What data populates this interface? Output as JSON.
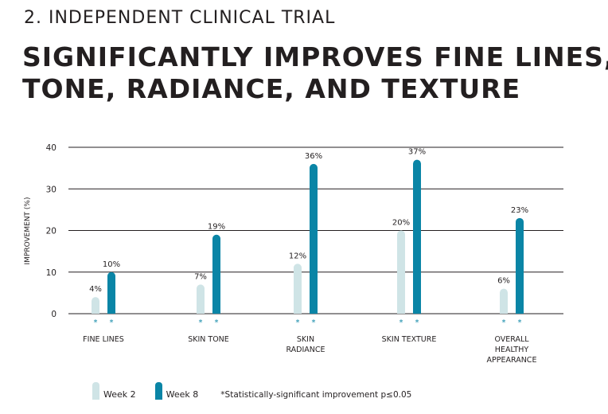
{
  "header": {
    "subtitle": "2. INDEPENDENT CLINICAL TRIAL",
    "title_line1": "SIGNIFICANTLY IMPROVES FINE LINES,",
    "title_line2": "TONE, RADIANCE, AND TEXTURE"
  },
  "legend": {
    "week2": "Week 2",
    "week8": "Week 8",
    "footnote": "*Statistically-significant improvement p≤0.05"
  },
  "colors": {
    "week2": "#cfe4e6",
    "week8": "#0a85a6",
    "asterisk": "#0a85a6",
    "gridline": "#231f20"
  },
  "chart_data": {
    "type": "bar",
    "categories": [
      [
        "FINE LINES"
      ],
      [
        "SKIN TONE"
      ],
      [
        "SKIN",
        "RADIANCE"
      ],
      [
        "SKIN TEXTURE"
      ],
      [
        "OVERALL",
        "HEALTHY",
        "APPEARANCE"
      ]
    ],
    "series": [
      {
        "name": "Week 2",
        "values": [
          4,
          7,
          12,
          20,
          6
        ],
        "labels": [
          "4%",
          "7%",
          "12%",
          "20%",
          "6%"
        ]
      },
      {
        "name": "Week 8",
        "values": [
          10,
          19,
          36,
          37,
          23
        ],
        "labels": [
          "10%",
          "19%",
          "36%",
          "37%",
          "23%"
        ]
      }
    ],
    "significance_marker": "*",
    "ylabel": "IMPROVEMENT (%)",
    "ylim": [
      0,
      40
    ],
    "yticks": [
      0,
      10,
      20,
      30,
      40
    ],
    "grid": true,
    "legend_position": "bottom-left"
  }
}
